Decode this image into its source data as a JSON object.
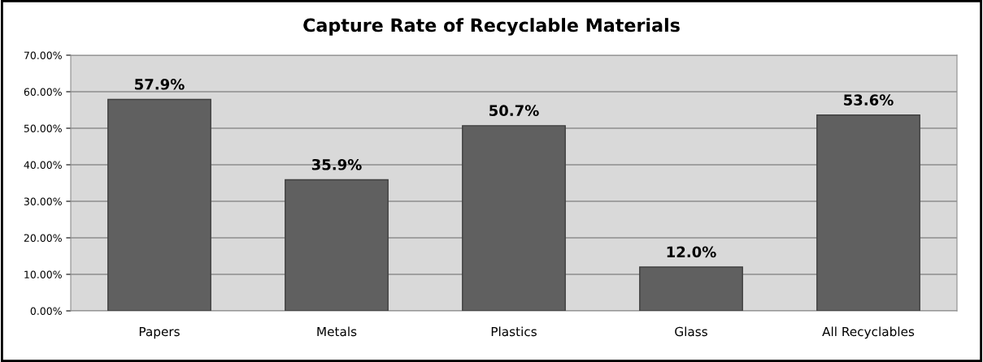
{
  "chart_data": {
    "type": "bar",
    "title": "Capture Rate of Recyclable Materials",
    "categories": [
      "Papers",
      "Metals",
      "Plastics",
      "Glass",
      "All Recyclables"
    ],
    "values": [
      57.9,
      35.9,
      50.7,
      12.0,
      53.6
    ],
    "color": "#606060",
    "value_labels": [
      "57.9%",
      "35.9%",
      "50.7%",
      "12.0%",
      "53.6%"
    ],
    "ylim": [
      0,
      70
    ],
    "yticks": [
      {
        "value": 0,
        "label": "0.00%"
      },
      {
        "value": 10,
        "label": "10.00%"
      },
      {
        "value": 20,
        "label": "20.00%"
      },
      {
        "value": 30,
        "label": "30.00%"
      },
      {
        "value": 40,
        "label": "40.00%"
      },
      {
        "value": 50,
        "label": "50.00%"
      },
      {
        "value": 60,
        "label": "60.00%"
      },
      {
        "value": 70,
        "label": "70.00%"
      }
    ],
    "grid": "y",
    "legend": false
  }
}
